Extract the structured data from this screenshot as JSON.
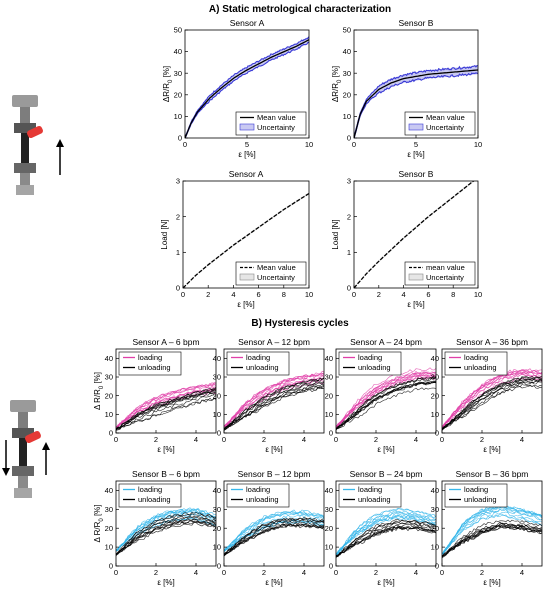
{
  "figure": {
    "section_a_title": "A) Static metrological characterization",
    "section_b_title": "B) Hysteresis cycles"
  },
  "colors": {
    "mean": "#000000",
    "uncertainty_blue": "#3a3ad6",
    "uncertainty_blue_fill": "#c9c9f2",
    "uncertainty_gray_fill": "#e6e6e6",
    "loading_a": "#e040a8",
    "loading_b": "#35b6ea",
    "unloading": "#000000"
  },
  "chart_data": [
    {
      "id": "a-sensor-a-resistance",
      "type": "line",
      "title": "Sensor A",
      "xlabel": "ε [%]",
      "ylabel": "ΔR/R0 [%]",
      "xlim": [
        0,
        10
      ],
      "ylim": [
        0,
        50
      ],
      "xticks": [
        0,
        5,
        10
      ],
      "yticks": [
        0,
        10,
        20,
        30,
        40,
        50
      ],
      "legend": [
        "Mean value",
        "Uncertainty"
      ],
      "legend_position": "bottom-right",
      "series": [
        {
          "name": "Mean value",
          "x": [
            0,
            0.5,
            1,
            2,
            3,
            4,
            5,
            6,
            7,
            8,
            9,
            10
          ],
          "y": [
            0,
            7,
            12,
            18.5,
            23.5,
            28,
            31.5,
            34.5,
            37.5,
            40,
            42.5,
            45.5
          ]
        }
      ],
      "uncertainty": 1.5
    },
    {
      "id": "a-sensor-b-resistance",
      "type": "line",
      "title": "Sensor B",
      "xlabel": "ε [%]",
      "ylabel": "ΔR/R0 [%]",
      "xlim": [
        0,
        10
      ],
      "ylim": [
        0,
        50
      ],
      "xticks": [
        0,
        5,
        10
      ],
      "yticks": [
        0,
        10,
        20,
        30,
        40,
        50
      ],
      "legend": [
        "Mean value",
        "Uncertainty"
      ],
      "legend_position": "bottom-right",
      "series": [
        {
          "name": "Mean value",
          "x": [
            0,
            0.5,
            1,
            2,
            3,
            4,
            5,
            6,
            7,
            8,
            9,
            10
          ],
          "y": [
            0,
            11,
            17,
            22.5,
            25.5,
            27.5,
            28.5,
            29.5,
            30,
            30.5,
            31,
            31.5
          ]
        }
      ],
      "uncertainty": 2
    },
    {
      "id": "a-sensor-a-load",
      "type": "line",
      "title": "Sensor A",
      "xlabel": "ε [%]",
      "ylabel": "Load [N]",
      "xlim": [
        0,
        10
      ],
      "ylim": [
        0,
        3
      ],
      "xticks": [
        0,
        2,
        4,
        6,
        8,
        10
      ],
      "yticks": [
        0,
        1,
        2,
        3
      ],
      "legend": [
        "Mean value",
        "Uncertainty"
      ],
      "legend_position": "bottom-right",
      "series": [
        {
          "name": "Mean value",
          "x": [
            0,
            1,
            2,
            4,
            6,
            8,
            10
          ],
          "y": [
            0,
            0.35,
            0.65,
            1.2,
            1.7,
            2.2,
            2.65
          ]
        }
      ],
      "uncertainty": 0.03
    },
    {
      "id": "a-sensor-b-load",
      "type": "line",
      "title": "Sensor B",
      "xlabel": "ε [%]",
      "ylabel": "Load [N]",
      "xlim": [
        0,
        10
      ],
      "ylim": [
        0,
        3
      ],
      "xticks": [
        0,
        2,
        4,
        6,
        8,
        10
      ],
      "yticks": [
        0,
        1,
        2,
        3
      ],
      "legend": [
        "mean value",
        "Uncertainty"
      ],
      "legend_position": "bottom-right",
      "series": [
        {
          "name": "mean value",
          "x": [
            0,
            1,
            2,
            4,
            6,
            8,
            10
          ],
          "y": [
            0,
            0.4,
            0.75,
            1.4,
            2.0,
            2.55,
            3.1
          ]
        }
      ],
      "uncertainty": 0.03
    },
    {
      "id": "b-a-6",
      "type": "line",
      "title": "Sensor A – 6 bpm",
      "xlabel": "ε [%]",
      "ylabel": "Δ R/R0 [%]",
      "xlim": [
        0,
        5
      ],
      "ylim": [
        0,
        45
      ],
      "xticks": [
        0,
        2,
        4
      ],
      "yticks": [
        0,
        10,
        20,
        30,
        40
      ],
      "legend": [
        "loading",
        "unloading"
      ],
      "legend_position": "top-left",
      "series": [
        {
          "name": "loading",
          "x": [
            0,
            1,
            2,
            3,
            4,
            5
          ],
          "y": [
            3,
            11,
            16.5,
            20,
            22.5,
            24
          ]
        },
        {
          "name": "unloading",
          "x": [
            0,
            1,
            2,
            3,
            4,
            5
          ],
          "y": [
            2,
            8,
            12.5,
            16,
            19,
            21.5
          ]
        }
      ]
    },
    {
      "id": "b-a-12",
      "type": "line",
      "title": "Sensor A – 12 bpm",
      "xlabel": "ε [%]",
      "ylabel": "",
      "xlim": [
        0,
        5
      ],
      "ylim": [
        0,
        45
      ],
      "xticks": [
        0,
        2,
        4
      ],
      "yticks": [
        0,
        10,
        20,
        30,
        40
      ],
      "legend": [
        "loading",
        "unloading"
      ],
      "legend_position": "top-left",
      "series": [
        {
          "name": "loading",
          "x": [
            0,
            1,
            2,
            3,
            4,
            5
          ],
          "y": [
            3,
            14,
            21,
            26,
            28.5,
            30
          ]
        },
        {
          "name": "unloading",
          "x": [
            0,
            1,
            2,
            3,
            4,
            5
          ],
          "y": [
            2,
            10,
            17,
            22,
            25,
            27
          ]
        }
      ]
    },
    {
      "id": "b-a-24",
      "type": "line",
      "title": "Sensor A – 24 bpm",
      "xlabel": "ε [%]",
      "ylabel": "",
      "xlim": [
        0,
        5
      ],
      "ylim": [
        0,
        45
      ],
      "xticks": [
        0,
        2,
        4
      ],
      "yticks": [
        0,
        10,
        20,
        30,
        40
      ],
      "legend": [
        "loading",
        "unloading"
      ],
      "legend_position": "top-left",
      "series": [
        {
          "name": "loading",
          "x": [
            0,
            1,
            2,
            3,
            4,
            5
          ],
          "y": [
            3,
            15,
            24,
            29,
            32,
            32
          ]
        },
        {
          "name": "unloading",
          "x": [
            0,
            1,
            2,
            3,
            4,
            5
          ],
          "y": [
            2,
            10,
            18,
            23,
            26,
            27
          ]
        }
      ]
    },
    {
      "id": "b-a-36",
      "type": "line",
      "title": "Sensor A – 36 bpm",
      "xlabel": "ε [%]",
      "ylabel": "",
      "xlim": [
        0,
        5
      ],
      "ylim": [
        0,
        45
      ],
      "xticks": [
        0,
        2,
        4
      ],
      "yticks": [
        0,
        10,
        20,
        30,
        40
      ],
      "legend": [
        "loading",
        "unloading"
      ],
      "legend_position": "top-left",
      "series": [
        {
          "name": "loading",
          "x": [
            0,
            1,
            2,
            3,
            4,
            5
          ],
          "y": [
            3,
            15,
            24,
            30,
            32,
            31
          ]
        },
        {
          "name": "unloading",
          "x": [
            0,
            1,
            2,
            3,
            4,
            5
          ],
          "y": [
            2,
            10,
            18,
            24,
            27,
            27
          ]
        }
      ]
    },
    {
      "id": "b-b-6",
      "type": "line",
      "title": "Sensor B – 6 bpm",
      "xlabel": "ε [%]",
      "ylabel": "Δ R/R0 [%]",
      "xlim": [
        0,
        5
      ],
      "ylim": [
        0,
        45
      ],
      "xticks": [
        0,
        2,
        4
      ],
      "yticks": [
        0,
        10,
        20,
        30,
        40
      ],
      "legend": [
        "loading",
        "unloading"
      ],
      "legend_position": "top-left",
      "series": [
        {
          "name": "loading",
          "x": [
            0,
            1,
            2,
            3,
            4,
            5
          ],
          "y": [
            8,
            18,
            24,
            27,
            27.5,
            24
          ]
        },
        {
          "name": "unloading",
          "x": [
            0,
            1,
            2,
            3,
            4,
            5
          ],
          "y": [
            6,
            15,
            21,
            24,
            25,
            23
          ]
        }
      ]
    },
    {
      "id": "b-b-12",
      "type": "line",
      "title": "Sensor B – 12 bpm",
      "xlabel": "ε [%]",
      "ylabel": "",
      "xlim": [
        0,
        5
      ],
      "ylim": [
        0,
        45
      ],
      "xticks": [
        0,
        2,
        4
      ],
      "yticks": [
        0,
        10,
        20,
        30,
        40
      ],
      "legend": [
        "loading",
        "unloading"
      ],
      "legend_position": "top-left",
      "series": [
        {
          "name": "loading",
          "x": [
            0,
            1,
            2,
            3,
            4,
            5
          ],
          "y": [
            8,
            17,
            23,
            26,
            26,
            24
          ]
        },
        {
          "name": "unloading",
          "x": [
            0,
            1,
            2,
            3,
            4,
            5
          ],
          "y": [
            6,
            14,
            20,
            23,
            23,
            22
          ]
        }
      ]
    },
    {
      "id": "b-b-24",
      "type": "line",
      "title": "Sensor B – 24 bpm",
      "xlabel": "ε [%]",
      "ylabel": "",
      "xlim": [
        0,
        5
      ],
      "ylim": [
        0,
        45
      ],
      "xticks": [
        0,
        2,
        4
      ],
      "yticks": [
        0,
        10,
        20,
        30,
        40
      ],
      "legend": [
        "loading",
        "unloading"
      ],
      "legend_position": "top-left",
      "series": [
        {
          "name": "loading",
          "x": [
            0,
            1,
            2,
            3,
            4,
            5
          ],
          "y": [
            6,
            18,
            25,
            28,
            27,
            24
          ]
        },
        {
          "name": "unloading",
          "x": [
            0,
            1,
            2,
            3,
            4,
            5
          ],
          "y": [
            5,
            13,
            19,
            22,
            22,
            20
          ]
        }
      ]
    },
    {
      "id": "b-b-36",
      "type": "line",
      "title": "Sensor B – 36 bpm",
      "xlabel": "ε [%]",
      "ylabel": "",
      "xlim": [
        0,
        5
      ],
      "ylim": [
        0,
        45
      ],
      "xticks": [
        0,
        2,
        4
      ],
      "yticks": [
        0,
        10,
        20,
        30,
        40
      ],
      "legend": [
        "loading",
        "unloading"
      ],
      "legend_position": "top-left",
      "series": [
        {
          "name": "loading",
          "x": [
            0,
            1,
            2,
            3,
            4,
            5
          ],
          "y": [
            6,
            20,
            27,
            29,
            27,
            24
          ]
        },
        {
          "name": "unloading",
          "x": [
            0,
            1,
            2,
            3,
            4,
            5
          ],
          "y": [
            5,
            14,
            20,
            23,
            22,
            20
          ]
        }
      ]
    }
  ]
}
